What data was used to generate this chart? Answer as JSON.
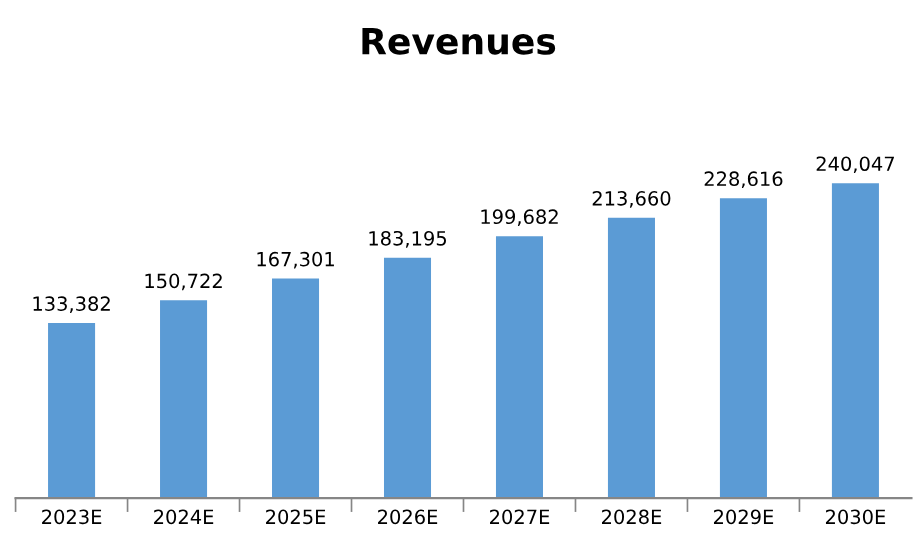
{
  "chart_data": {
    "type": "bar",
    "title": "Revenues",
    "categories": [
      "2023E",
      "2024E",
      "2025E",
      "2026E",
      "2027E",
      "2028E",
      "2029E",
      "2030E"
    ],
    "values": [
      133382,
      150722,
      167301,
      183195,
      199682,
      213660,
      228616,
      240047
    ],
    "value_labels": [
      "133,382",
      "150,722",
      "167,301",
      "183,195",
      "199,682",
      "213,660",
      "228,616",
      "240,047"
    ],
    "color": "#5b9bd5",
    "grid": false,
    "legend": false
  }
}
